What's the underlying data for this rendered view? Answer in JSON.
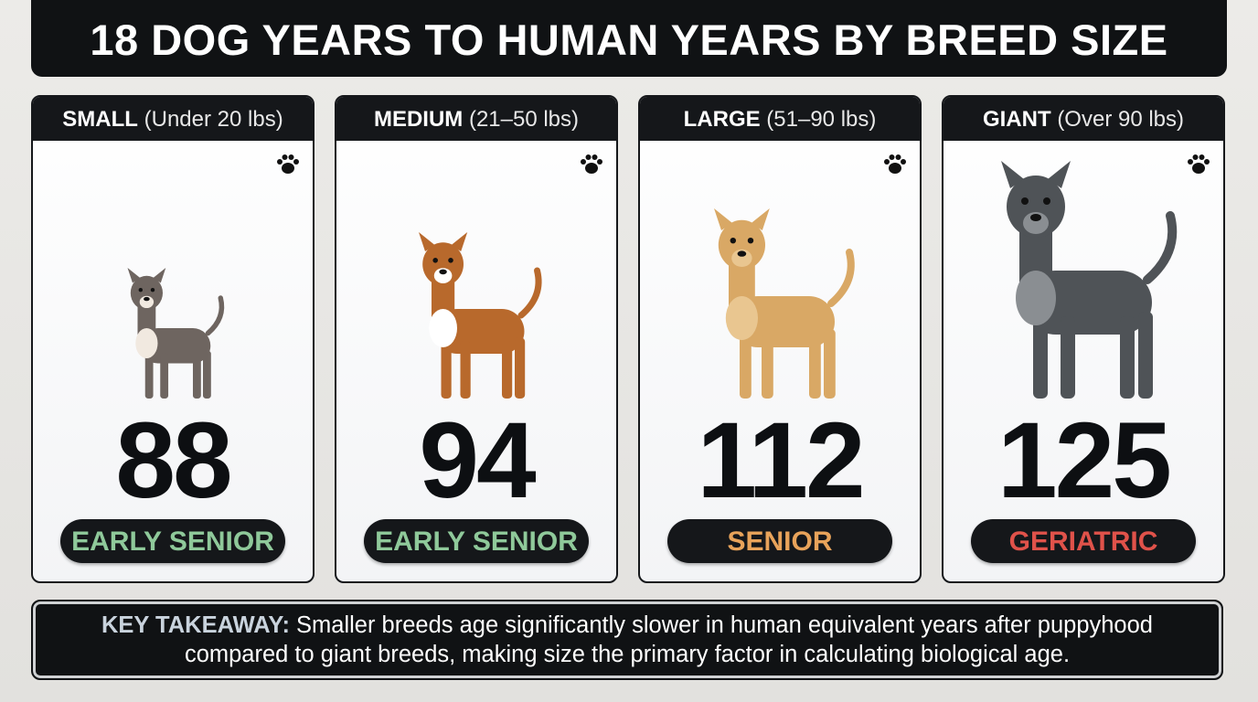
{
  "header": {
    "title": "18 DOG YEARS TO HUMAN YEARS BY BREED SIZE"
  },
  "cards": [
    {
      "size": "SMALL",
      "weight": "(Under 20 lbs)",
      "value": 88,
      "status": "EARLY SENIOR",
      "status_color": "#8fc99a"
    },
    {
      "size": "MEDIUM",
      "weight": "(21–50 lbs)",
      "value": 94,
      "status": "EARLY SENIOR",
      "status_color": "#8fc99a"
    },
    {
      "size": "LARGE",
      "weight": "(51–90 lbs)",
      "value": 112,
      "status": "SENIOR",
      "status_color": "#e8a35a"
    },
    {
      "size": "GIANT",
      "weight": "(Over 90 lbs)",
      "value": 125,
      "status": "GERIATRIC",
      "status_color": "#e0524a"
    }
  ],
  "takeaway": {
    "label": "KEY TAKEAWAY:",
    "text": "Smaller breeds age significantly slower in human equivalent years after puppyhood compared to giant breeds, making size the primary factor in calculating biological age."
  }
}
